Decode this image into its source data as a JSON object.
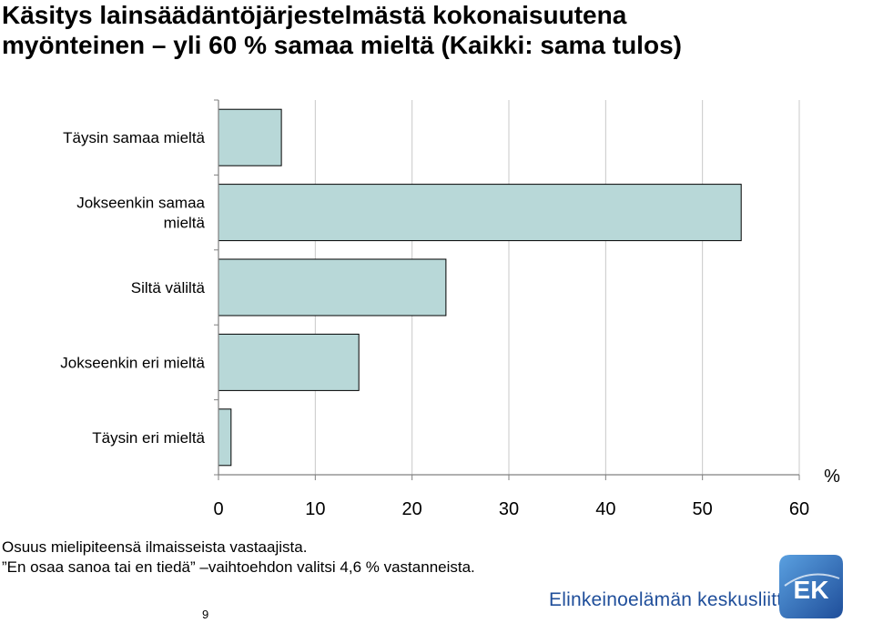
{
  "title": {
    "line1": "Käsitys lainsäädäntöjärjestelmästä kokonaisuutena",
    "line2": "myönteinen – yli 60 % samaa mieltä (Kaikki: sama tulos)"
  },
  "chart_data": {
    "type": "bar",
    "orientation": "horizontal",
    "categories": [
      [
        "Täysin samaa mieltä"
      ],
      [
        "Jokseenkin samaa",
        "mieltä"
      ],
      [
        "Siltä väliltä"
      ],
      [
        "Jokseenkin eri mieltä"
      ],
      [
        "Täysin eri mieltä"
      ]
    ],
    "values": [
      6.5,
      54,
      23.5,
      14.5,
      1.3
    ],
    "xlim": [
      0,
      60
    ],
    "xticks": [
      0,
      10,
      20,
      30,
      40,
      50,
      60
    ],
    "xlabel": "%",
    "grid": true,
    "legend": "none",
    "colors": {
      "bar_fill": "#b8d8d8",
      "bar_stroke": "#000000",
      "grid": "#c8c8c8",
      "axis": "#808080"
    }
  },
  "notes": {
    "line1": "Osuus mielipiteensä ilmaisseista vastaajista.",
    "line2": " ”En osaa sanoa tai en tiedä” –vaihtoehdon valitsi 4,6 % vastanneista."
  },
  "page_number": "9",
  "brand": {
    "name": "Elinkeinoelämän keskusliitto",
    "logo_text": "EK",
    "colors": {
      "blue": "#1f4e9a",
      "gradient_light": "#5aa0e0"
    }
  }
}
